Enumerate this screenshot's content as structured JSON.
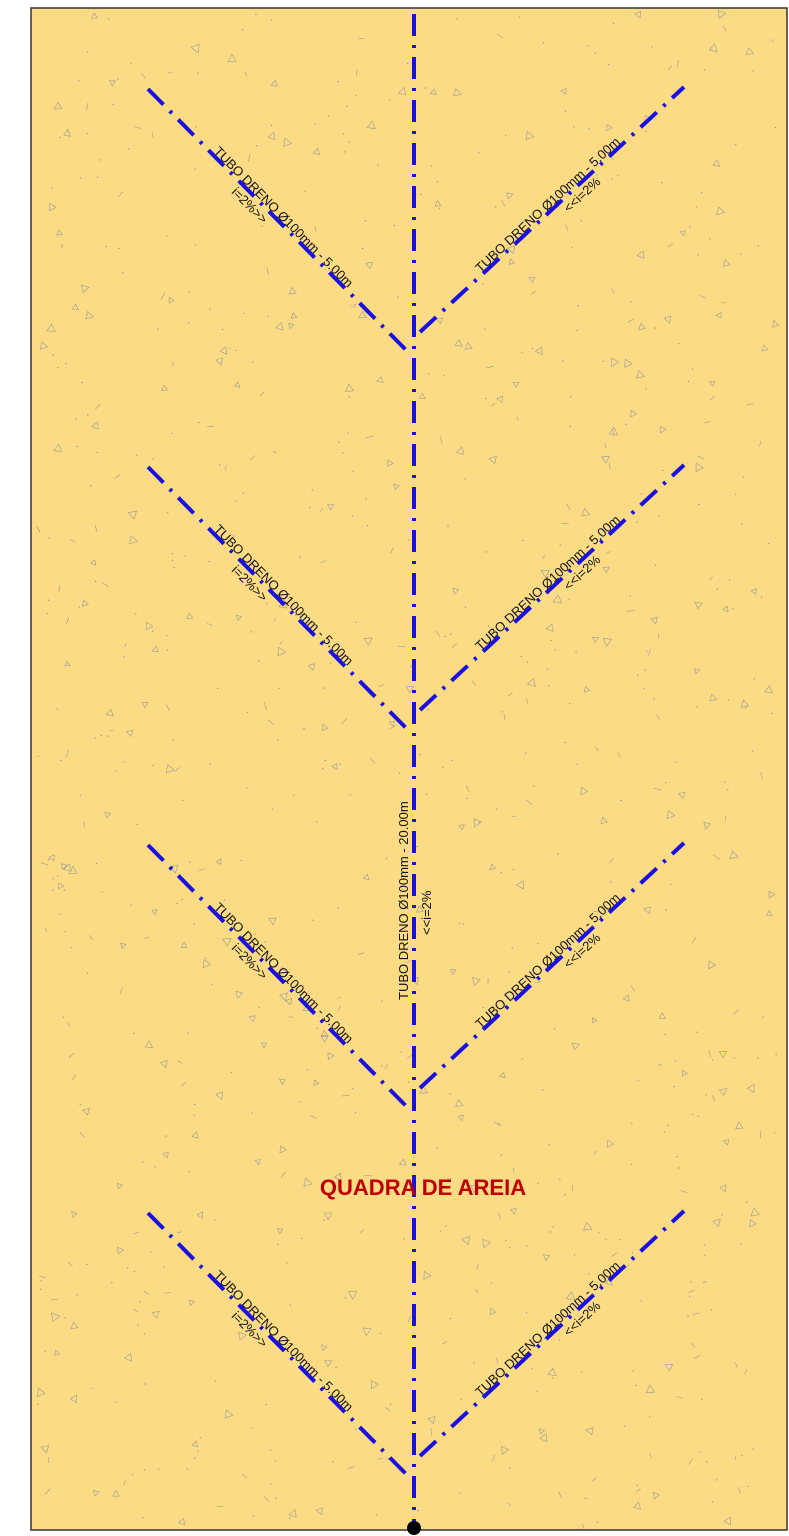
{
  "area_label": "QUADRA DE AREIA",
  "colors": {
    "sand_fill": "#fbdc84",
    "pipe": "#1a10e0",
    "border": "#333333",
    "title": "#c00000",
    "texture": "#9a9a9a"
  },
  "main_pipe": {
    "label_1": "TUBO DRENO Ø100mm - 20.00m",
    "label_2": "<<i=2%"
  },
  "branches": [
    {
      "label_1": "TUBO DRENO Ø100mm - 5.00m",
      "label_2": "i=2%>>"
    },
    {
      "label_1": "TUBO DRENO Ø100mm - 5.00m",
      "label_2": "<<i=2%"
    },
    {
      "label_1": "TUBO DRENO Ø100mm - 5.00m",
      "label_2": "i=2%>>"
    },
    {
      "label_1": "TUBO DRENO Ø100mm - 5.00m",
      "label_2": "<<i=2%"
    },
    {
      "label_1": "TUBO DRENO Ø100mm - 5.00m",
      "label_2": "i=2%>>"
    },
    {
      "label_1": "TUBO DRENO Ø100mm - 5.00m",
      "label_2": "<<i=2%"
    },
    {
      "label_1": "TUBO DRENO Ø100mm - 5.00m",
      "label_2": "i=2%>>"
    },
    {
      "label_1": "TUBO DRENO Ø100mm - 5.00m",
      "label_2": "<<i=2%"
    }
  ]
}
